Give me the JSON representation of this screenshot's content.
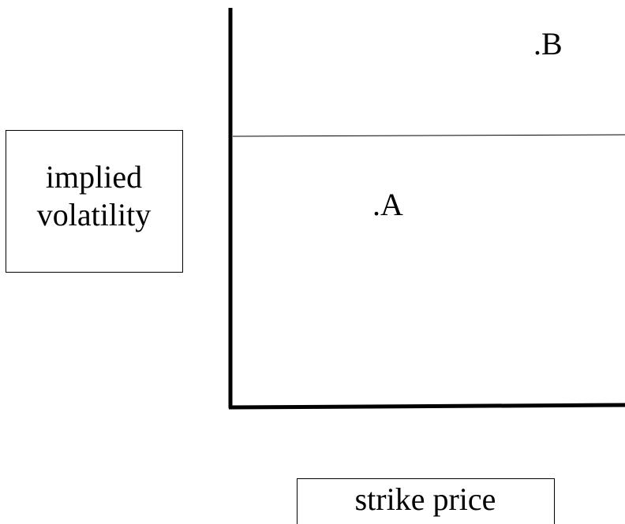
{
  "y_axis_label": {
    "lines": [
      "implied",
      "volatility"
    ]
  },
  "x_axis_label": "strike price",
  "points": [
    {
      "label": ".A"
    },
    {
      "label": ".B"
    }
  ]
}
